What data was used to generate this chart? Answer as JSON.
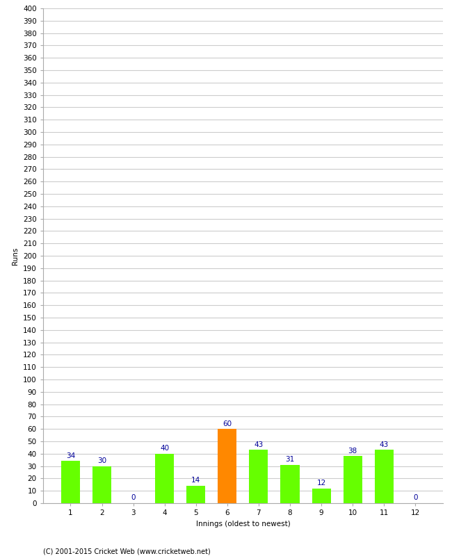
{
  "categories": [
    "1",
    "2",
    "3",
    "4",
    "5",
    "6",
    "7",
    "8",
    "9",
    "10",
    "11",
    "12"
  ],
  "values": [
    34,
    30,
    0,
    40,
    14,
    60,
    43,
    31,
    12,
    38,
    43,
    0
  ],
  "bar_colors": [
    "#66ff00",
    "#66ff00",
    "#66ff00",
    "#66ff00",
    "#66ff00",
    "#ff8800",
    "#66ff00",
    "#66ff00",
    "#66ff00",
    "#66ff00",
    "#66ff00",
    "#66ff00"
  ],
  "xlabel": "Innings (oldest to newest)",
  "ylabel": "Runs",
  "ylim": [
    0,
    400
  ],
  "ytick_step": 10,
  "label_color": "#000099",
  "label_fontsize": 7.5,
  "axis_fontsize": 7.5,
  "tick_fontsize": 7.5,
  "background_color": "#ffffff",
  "grid_color": "#cccccc",
  "footer": "(C) 2001-2015 Cricket Web (www.cricketweb.net)"
}
